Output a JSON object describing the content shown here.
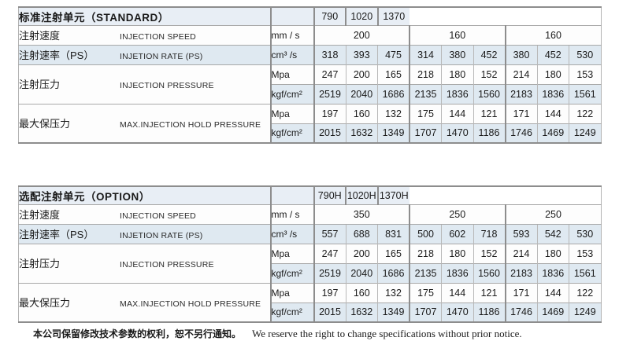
{
  "colors": {
    "row_shade": "#dfe9f1",
    "header_shade": "#e8eef5",
    "row_white": "#fdfdfd",
    "border_dark": "#8d8d8d",
    "border_light": "#b8b8b8",
    "text": "#1a1a1a"
  },
  "tables": [
    {
      "id": "table-standard",
      "title": "标准注射单元（STANDARD）",
      "models": [
        "790",
        "1020",
        "1370"
      ],
      "rows": [
        {
          "label_cn": "注射速度",
          "label_en": "INJECTION SPEED",
          "unit": "mm / s",
          "group_values": [
            "200",
            "160",
            "160"
          ],
          "shaded": false
        },
        {
          "label_cn": "注射速率（PS）",
          "label_en": "INJETION RATE (PS)",
          "unit": "cm³ /s",
          "values": [
            "318",
            "393",
            "475",
            "314",
            "380",
            "452",
            "380",
            "452",
            "530"
          ],
          "shaded": true
        },
        {
          "label_cn": "注射压力",
          "label_en": "INJECTION PRESSURE",
          "subrows": [
            {
              "unit": "Mpa",
              "values": [
                "247",
                "200",
                "165",
                "218",
                "180",
                "152",
                "214",
                "180",
                "153"
              ],
              "shaded": false
            },
            {
              "unit": "kgf/cm²",
              "values": [
                "2519",
                "2040",
                "1686",
                "2135",
                "1836",
                "1560",
                "2183",
                "1836",
                "1561"
              ],
              "shaded": true
            }
          ]
        },
        {
          "label_cn": "最大保压力",
          "label_en": "MAX.INJECTION HOLD PRESSURE",
          "subrows": [
            {
              "unit": "Mpa",
              "values": [
                "197",
                "160",
                "132",
                "175",
                "144",
                "121",
                "171",
                "144",
                "122"
              ],
              "shaded": false
            },
            {
              "unit": "kgf/cm²",
              "values": [
                "2015",
                "1632",
                "1349",
                "1707",
                "1470",
                "1186",
                "1746",
                "1469",
                "1249"
              ],
              "shaded": true
            }
          ]
        }
      ]
    },
    {
      "id": "table-option",
      "title": "选配注射单元（OPTION）",
      "models": [
        "790H",
        "1020H",
        "1370H"
      ],
      "rows": [
        {
          "label_cn": "注射速度",
          "label_en": "INJECTION SPEED",
          "unit": "mm / s",
          "group_values": [
            "350",
            "250",
            "250"
          ],
          "shaded": false
        },
        {
          "label_cn": "注射速率（PS）",
          "label_en": "INJETION RATE (PS)",
          "unit": "cm³ /s",
          "values": [
            "557",
            "688",
            "831",
            "500",
            "602",
            "718",
            "593",
            "542",
            "530"
          ],
          "shaded": true
        },
        {
          "label_cn": "注射压力",
          "label_en": "INJECTION PRESSURE",
          "subrows": [
            {
              "unit": "Mpa",
              "values": [
                "247",
                "200",
                "165",
                "218",
                "180",
                "152",
                "214",
                "180",
                "153"
              ],
              "shaded": false
            },
            {
              "unit": "kgf/cm²",
              "values": [
                "2519",
                "2040",
                "1686",
                "2135",
                "1836",
                "1560",
                "2183",
                "1836",
                "1561"
              ],
              "shaded": true
            }
          ]
        },
        {
          "label_cn": "最大保压力",
          "label_en": "MAX.INJECTION HOLD PRESSURE",
          "subrows": [
            {
              "unit": "Mpa",
              "values": [
                "197",
                "160",
                "132",
                "175",
                "144",
                "121",
                "171",
                "144",
                "122"
              ],
              "shaded": false
            },
            {
              "unit": "kgf/cm²",
              "values": [
                "2015",
                "1632",
                "1349",
                "1707",
                "1470",
                "1186",
                "1746",
                "1469",
                "1249"
              ],
              "shaded": true
            }
          ]
        }
      ]
    }
  ],
  "footer": {
    "cn": "本公司保留修改技术参数的权利，恕不另行通知。",
    "en": "We reserve the right to change specifications without prior notice."
  }
}
